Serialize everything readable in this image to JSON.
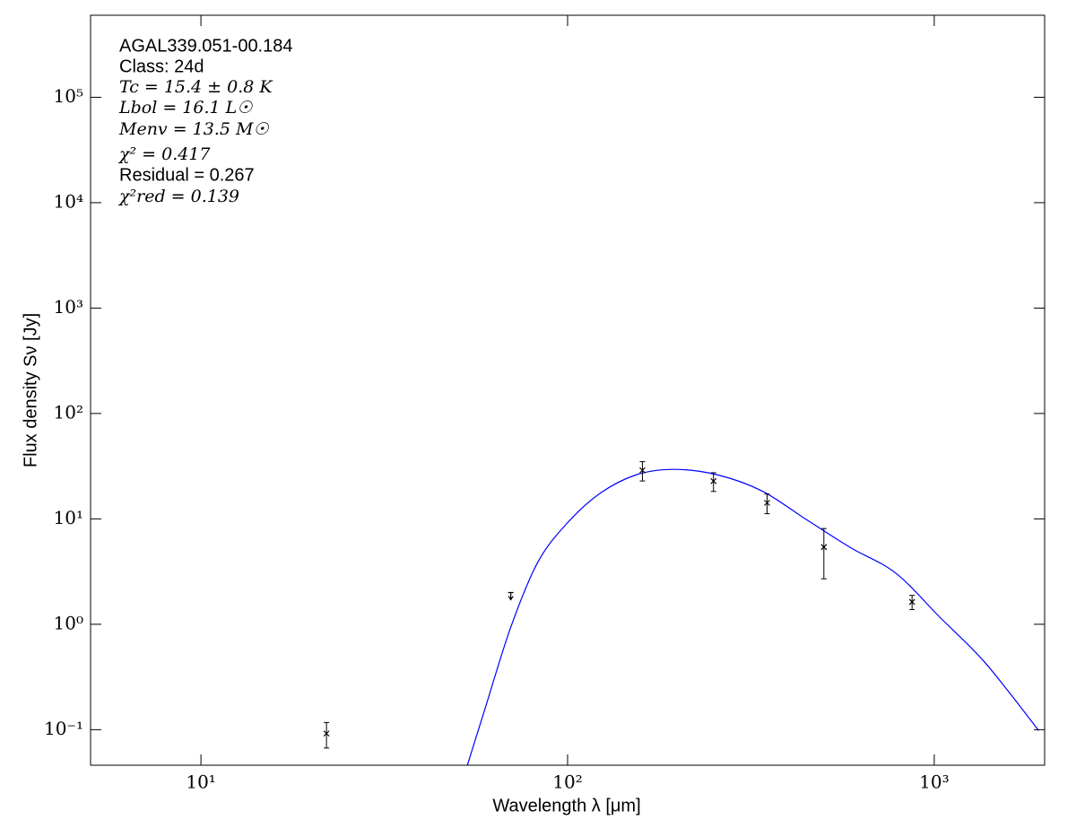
{
  "chart_data": {
    "type": "sed",
    "xlabel": "Wavelength λ [μm]",
    "ylabel": "Flux density Sν [Jy]",
    "annotations": [
      "AGAL339.051-00.184",
      "Class: 24d",
      "Tc = 15.4 ± 0.8 K",
      "Lbol = 16.1 L☉",
      "Menv = 13.5 M☉",
      "χ² = 0.417",
      "Residual = 0.267",
      "χ²red = 0.139"
    ],
    "xscale": "log",
    "yscale": "log",
    "xlim": [
      5,
      2000
    ],
    "ylim": [
      0.046,
      600000
    ],
    "xticks": [
      {
        "value": 10,
        "label": "10¹"
      },
      {
        "value": 100,
        "label": "10²"
      },
      {
        "value": 1000,
        "label": "10³"
      }
    ],
    "yticks": [
      {
        "value": 0.1,
        "label": "10⁻¹"
      },
      {
        "value": 1,
        "label": "10⁰"
      },
      {
        "value": 10,
        "label": "10¹"
      },
      {
        "value": 100,
        "label": "10²"
      },
      {
        "value": 1000,
        "label": "10³"
      },
      {
        "value": 10000,
        "label": "10⁴"
      },
      {
        "value": 100000,
        "label": "10⁵"
      }
    ],
    "series": [
      {
        "kind": "model",
        "color": "#0000ff",
        "x": [
          52,
          59.6,
          70,
          83,
          100,
          123,
          154,
          195,
          256,
          339,
          449,
          593,
          785,
          1040,
          1378,
          1928
        ],
        "values": [
          0.035,
          0.16,
          0.94,
          3.9,
          9.2,
          17.6,
          26.2,
          29.5,
          26.2,
          18.4,
          9.8,
          5.3,
          3.06,
          1.15,
          0.43,
          0.098
        ]
      },
      {
        "kind": "detection",
        "color": "#000000",
        "x": [
          22,
          160,
          250,
          350,
          500,
          870
        ],
        "values": [
          0.092,
          28.9,
          22.8,
          14.2,
          5.4,
          1.63
        ],
        "errors": [
          0.025,
          6,
          4.6,
          3,
          2.7,
          0.25
        ]
      },
      {
        "kind": "upper_limit",
        "color": "#000000",
        "x": [
          70
        ],
        "values": [
          2.0
        ]
      }
    ]
  }
}
